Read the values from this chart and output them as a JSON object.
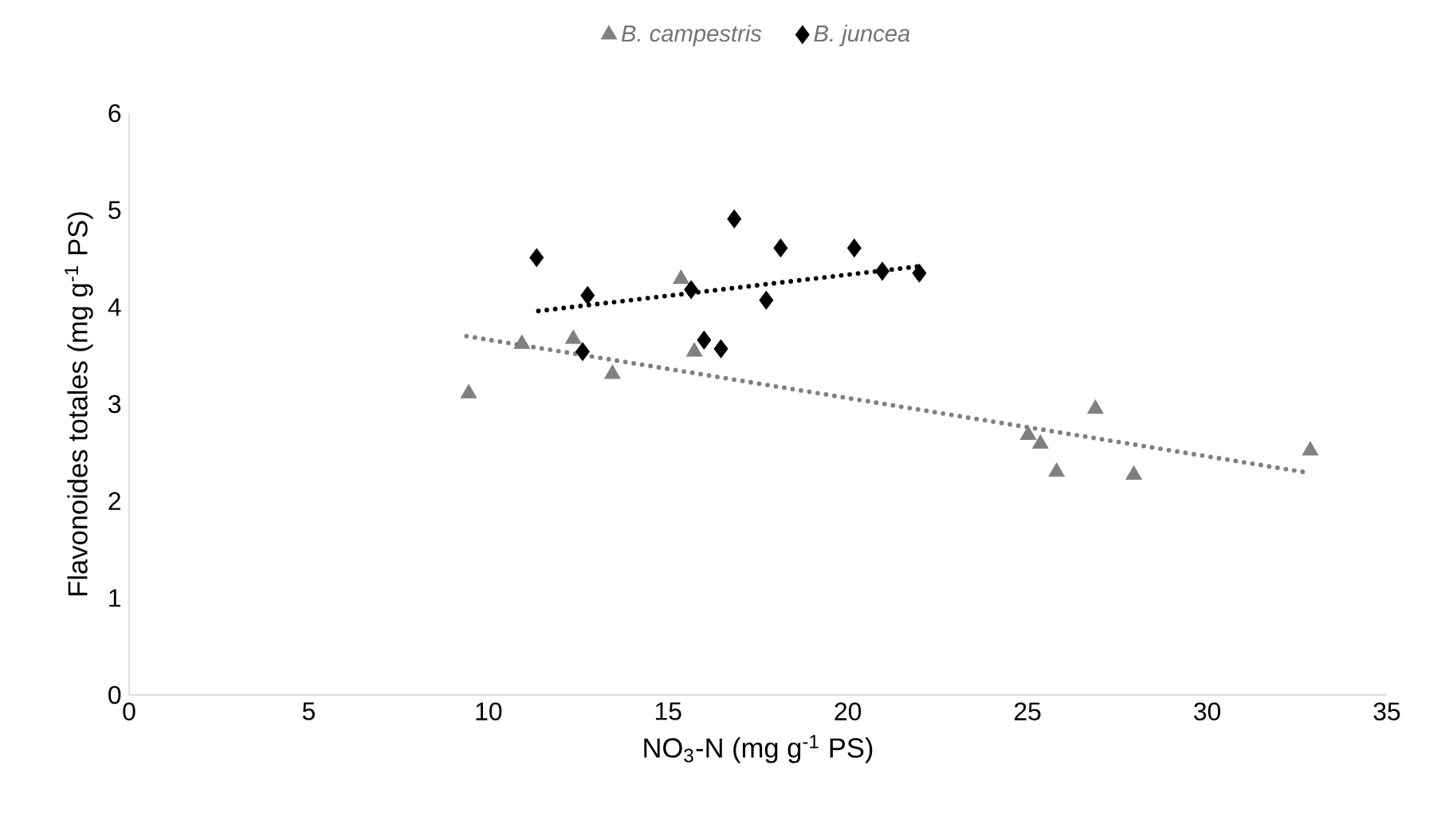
{
  "chart_data": {
    "type": "scatter",
    "xlabel": "NO$_{3}$-N (mg g$^{-1}$ PS)",
    "ylabel": "Flavonoides totales (mg g$^{-1}$ PS)",
    "xlim": [
      0,
      35
    ],
    "xticks": [
      0,
      5,
      10,
      15,
      20,
      25,
      30,
      35
    ],
    "ylim": [
      0,
      6
    ],
    "yticks": [
      0,
      1,
      2,
      3,
      4,
      5,
      6
    ],
    "grid": false,
    "legend": "top",
    "series": [
      {
        "name": "B. campestris",
        "color": "#808080",
        "marker": "triangle",
        "x": [
          9.45,
          10.93,
          12.36,
          13.45,
          15.36,
          15.73,
          25.02,
          25.36,
          25.81,
          26.89,
          27.96,
          32.87
        ],
        "values": [
          3.11,
          3.62,
          3.67,
          3.31,
          4.29,
          3.54,
          2.68,
          2.59,
          2.3,
          2.95,
          2.27,
          2.52
        ]
      },
      {
        "name": "B. juncea",
        "color": "#000000",
        "marker": "diamond",
        "x": [
          11.34,
          12.76,
          12.62,
          15.64,
          16.0,
          16.47,
          16.84,
          17.73,
          18.13,
          20.18,
          20.96,
          21.99
        ],
        "values": [
          4.51,
          4.12,
          3.54,
          4.18,
          3.66,
          3.57,
          4.91,
          4.07,
          4.61,
          4.61,
          4.37,
          4.35
        ]
      },
      {
        "type": "line",
        "color": "#808080",
        "marker": "none",
        "line_style": "dotted",
        "x": [
          9.39,
          32.84
        ],
        "values": [
          3.7,
          2.29
        ]
      },
      {
        "type": "line",
        "color": "#000000",
        "marker": "none",
        "line_style": "dotted",
        "x": [
          11.39,
          21.96
        ],
        "values": [
          3.96,
          4.42
        ]
      }
    ]
  }
}
